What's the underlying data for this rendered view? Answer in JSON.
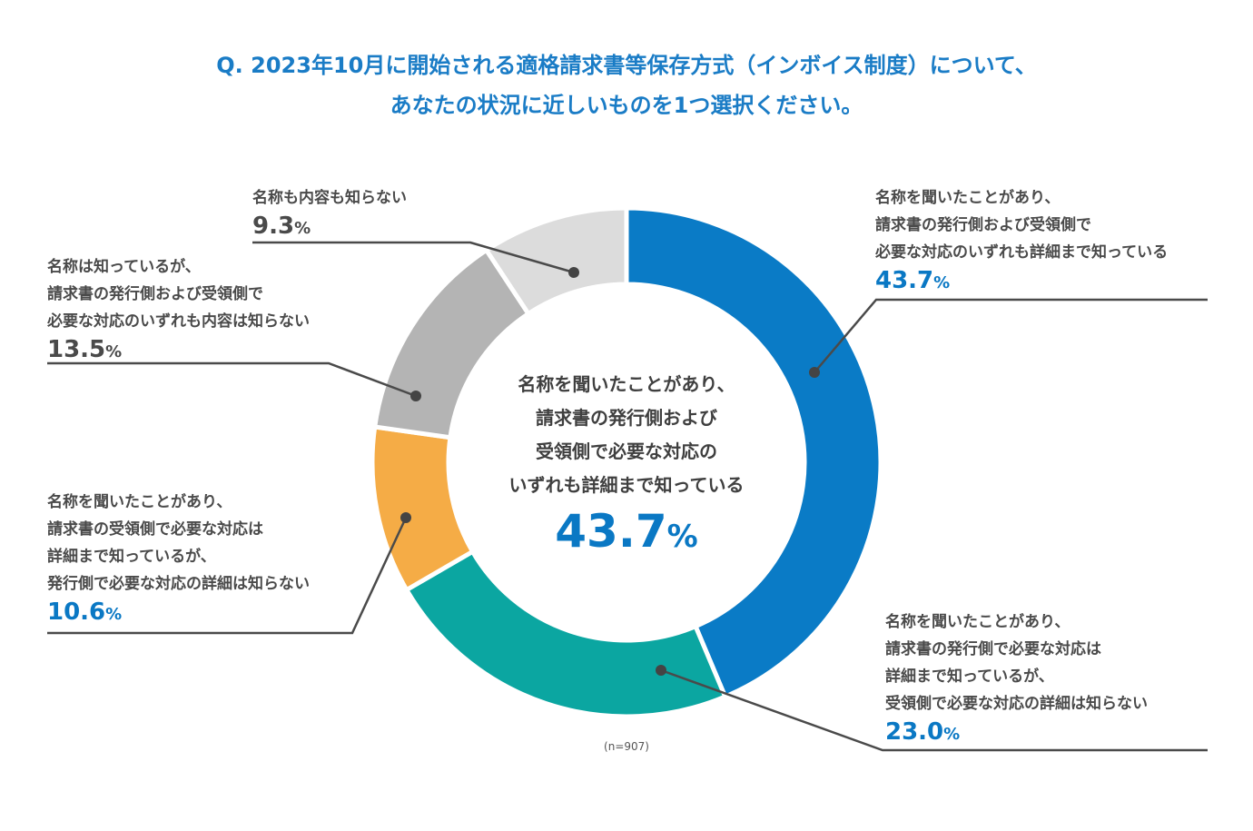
{
  "title": {
    "line1": "Q. 2023年10月に開始される適格請求書等保存方式（インボイス制度）について、",
    "line2": "あなたの状況に近しいものを1つ選択ください。"
  },
  "chart_data": {
    "type": "pie",
    "donut": true,
    "unit": "%",
    "sample_note": "(n=907)",
    "center": {
      "lines": [
        "名称を聞いたことがあり、",
        "請求書の発行側および",
        "受領側で必要な対応の",
        "いずれも詳細まで知っている"
      ],
      "value": "43.7",
      "unit": "%"
    },
    "slices": [
      {
        "lines": [
          "名称を聞いたことがあり、",
          "請求書の発行側および受領側で",
          "必要な対応のいずれも詳細まで知っている"
        ],
        "value": 43.7,
        "value_label": "43.7",
        "color": "#0a7bc6",
        "highlight": true
      },
      {
        "lines": [
          "名称を聞いたことがあり、",
          "請求書の発行側で必要な対応は",
          "詳細まで知っているが、",
          "受領側で必要な対応の詳細は知らない"
        ],
        "value": 23.0,
        "value_label": "23.0",
        "color": "#0ba6a1",
        "highlight": true
      },
      {
        "lines": [
          "名称を聞いたことがあり、",
          "請求書の受領側で必要な対応は",
          "詳細まで知っているが、",
          "発行側で必要な対応の詳細は知らない"
        ],
        "value": 10.6,
        "value_label": "10.6",
        "color": "#f5ac46",
        "highlight": true
      },
      {
        "lines": [
          "名称は知っているが、",
          "請求書の発行側および受領側で",
          "必要な対応のいずれも内容は知らない"
        ],
        "value": 13.5,
        "value_label": "13.5",
        "color": "#b4b4b4",
        "highlight": false
      },
      {
        "lines": [
          "名称も内容も知らない"
        ],
        "value": 9.3,
        "value_label": "9.3",
        "color": "#dcdcdc",
        "highlight": false
      }
    ]
  }
}
